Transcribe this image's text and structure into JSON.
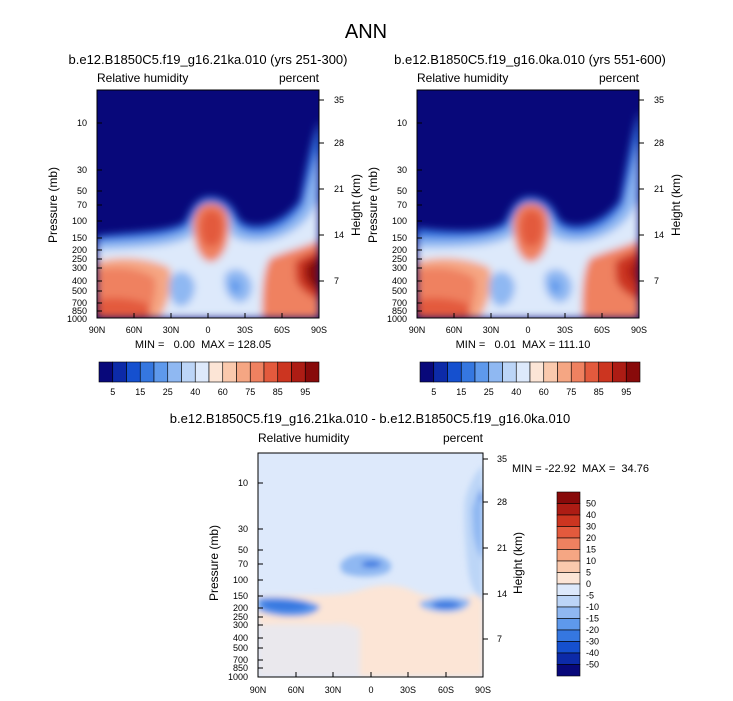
{
  "figure": {
    "title": "ANN"
  },
  "colors": {
    "scale": [
      "#08087a",
      "#0c2aa8",
      "#1550cf",
      "#3577e0",
      "#5e99ec",
      "#8fb8f2",
      "#bcd5f7",
      "#dde9fb",
      "#fce5d6",
      "#fac9ad",
      "#f5a683",
      "#ef8160",
      "#e35a3d",
      "#cc3520",
      "#ad1c14",
      "#880a0a"
    ],
    "diff_scale": [
      "#08087a",
      "#0c2aa8",
      "#1550cf",
      "#3577e0",
      "#5e99ec",
      "#8fb8f2",
      "#bcd5f7",
      "#dde9fb",
      "#fce5d6",
      "#fac9ad",
      "#f5a683",
      "#ef8160",
      "#e35a3d",
      "#cc3520",
      "#ad1c14",
      "#880a0a"
    ]
  },
  "chart_data": [
    {
      "type": "heatmap",
      "title": "b.e12.B1850C5.f19_g16.21ka.010 (yrs 251-300)",
      "variable": "Relative humidity",
      "units": "percent",
      "xlabel": "",
      "ylabel": "Pressure (mb)",
      "ylabel_right": "Height (km)",
      "x_ticks": [
        "90N",
        "60N",
        "30N",
        "0",
        "30S",
        "60S",
        "90S"
      ],
      "y_ticks": [
        "10",
        "30",
        "50",
        "70",
        "100",
        "150",
        "200",
        "250",
        "300",
        "400",
        "500",
        "700",
        "850",
        "1000"
      ],
      "y_ticks_right": [
        "35",
        "28",
        "21",
        "14",
        "7"
      ],
      "ylim": [
        1000,
        3
      ],
      "y_scale": "log",
      "stats": "MIN =   0.00  MAX = 128.05",
      "colorbar_labels": [
        "5",
        "15",
        "25",
        "40",
        "60",
        "75",
        "85",
        "95"
      ],
      "levels": [
        5,
        10,
        15,
        20,
        25,
        30,
        40,
        50,
        60,
        70,
        75,
        80,
        85,
        90,
        95
      ]
    },
    {
      "type": "heatmap",
      "title": "b.e12.B1850C5.f19_g16.0ka.010 (yrs 551-600)",
      "variable": "Relative humidity",
      "units": "percent",
      "xlabel": "",
      "ylabel": "Pressure (mb)",
      "ylabel_right": "Height (km)",
      "x_ticks": [
        "90N",
        "60N",
        "30N",
        "0",
        "30S",
        "60S",
        "90S"
      ],
      "y_ticks": [
        "10",
        "30",
        "50",
        "70",
        "100",
        "150",
        "200",
        "250",
        "300",
        "400",
        "500",
        "700",
        "850",
        "1000"
      ],
      "y_ticks_right": [
        "35",
        "28",
        "21",
        "14",
        "7"
      ],
      "ylim": [
        1000,
        3
      ],
      "y_scale": "log",
      "stats": "MIN =   0.01  MAX = 111.10",
      "colorbar_labels": [
        "5",
        "15",
        "25",
        "40",
        "60",
        "75",
        "85",
        "95"
      ],
      "levels": [
        5,
        10,
        15,
        20,
        25,
        30,
        40,
        50,
        60,
        70,
        75,
        80,
        85,
        90,
        95
      ]
    },
    {
      "type": "heatmap",
      "title": "b.e12.B1850C5.f19_g16.21ka.010 - b.e12.B1850C5.f19_g16.0ka.010",
      "variable": "Relative humidity",
      "units": "percent",
      "xlabel": "",
      "ylabel": "Pressure (mb)",
      "ylabel_right": "Height (km)",
      "x_ticks": [
        "90N",
        "60N",
        "30N",
        "0",
        "30S",
        "60S",
        "90S"
      ],
      "y_ticks": [
        "10",
        "30",
        "50",
        "70",
        "100",
        "150",
        "200",
        "250",
        "300",
        "400",
        "500",
        "700",
        "850",
        "1000"
      ],
      "y_ticks_right": [
        "35",
        "28",
        "21",
        "14",
        "7"
      ],
      "ylim": [
        1000,
        3
      ],
      "y_scale": "log",
      "stats": "MIN = -22.92  MAX =  34.76",
      "colorbar_labels": [
        "50",
        "40",
        "30",
        "20",
        "15",
        "10",
        "5",
        "0",
        "-5",
        "-10",
        "-15",
        "-20",
        "-30",
        "-40",
        "-50"
      ],
      "levels": [
        -50,
        -40,
        -30,
        -20,
        -15,
        -10,
        -5,
        0,
        5,
        10,
        15,
        20,
        30,
        40,
        50
      ]
    }
  ]
}
